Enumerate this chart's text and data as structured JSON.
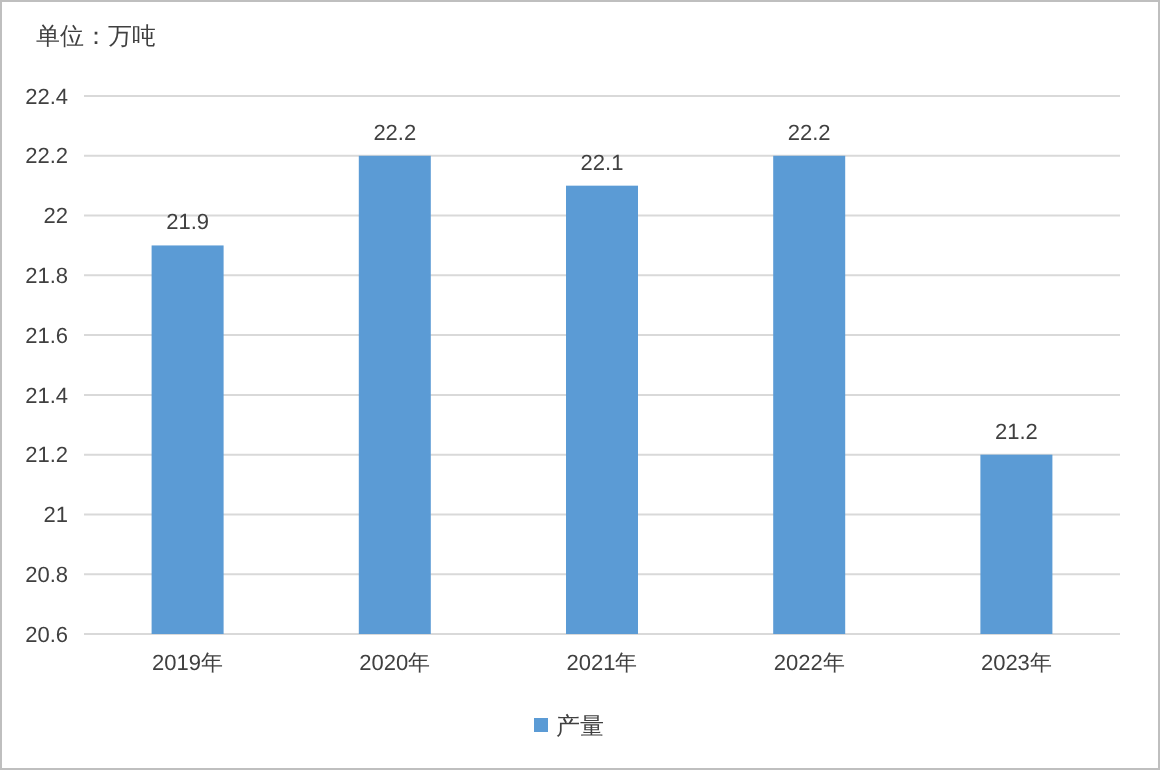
{
  "chart_data": {
    "type": "bar",
    "ylabel": "单位：万吨",
    "categories": [
      "2019年",
      "2020年",
      "2021年",
      "2022年",
      "2023年"
    ],
    "series": [
      {
        "name": "产量",
        "color": "#5b9bd5",
        "values": [
          21.9,
          22.2,
          22.1,
          22.2,
          21.2
        ]
      }
    ],
    "ylim": [
      20.6,
      22.4
    ],
    "yticks": [
      20.6,
      20.8,
      21,
      21.2,
      21.4,
      21.6,
      21.8,
      22,
      22.2,
      22.4
    ],
    "grid": "y",
    "legend": "bottom",
    "data_labels": true
  }
}
